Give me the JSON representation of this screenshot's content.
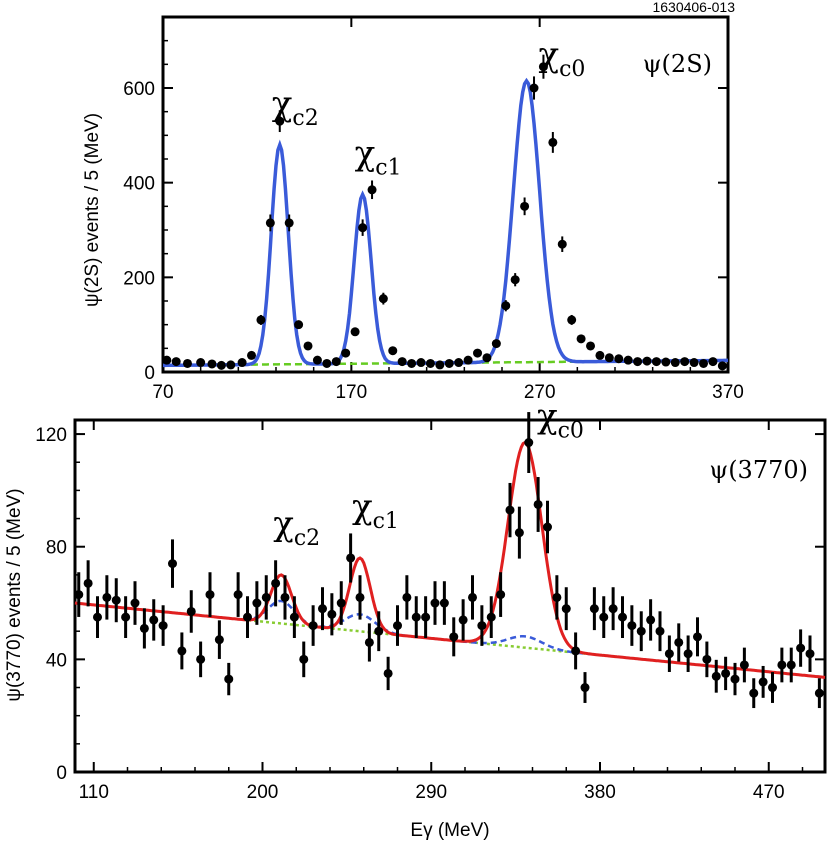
{
  "figure_id": "1630406-013",
  "colors": {
    "fit": "#3a5bd9",
    "background_top": "#66cc22",
    "fit_bottom": "#e02020",
    "signal_bottom": "#3a5bd9",
    "background_bottom": "#88cc33",
    "points": "#000000"
  },
  "chart_data": [
    {
      "type": "scatter",
      "panel": "top",
      "label": "ψ(2S)",
      "ylabel": "ψ(2S) events / 5 (MeV)",
      "xlabel": "",
      "xlim": [
        70,
        370
      ],
      "ylim": [
        0,
        750
      ],
      "x_ticks": [
        "70",
        "170",
        "270",
        "370"
      ],
      "y_ticks": [
        "0",
        "200",
        "400",
        "600"
      ],
      "x_tick_values": [
        70,
        170,
        270,
        370
      ],
      "y_tick_values": [
        0,
        200,
        400,
        600
      ],
      "peaks": [
        {
          "base": "χ",
          "sub": "c2",
          "energy": 132,
          "height": 480
        },
        {
          "base": "χ",
          "sub": "c1",
          "energy": 176,
          "height": 375
        },
        {
          "base": "χ",
          "sub": "c0",
          "energy": 263,
          "height": 615
        }
      ],
      "series": [
        {
          "name": "data",
          "x": [
            72,
            77,
            83,
            90,
            96,
            101,
            106,
            112,
            117,
            122,
            127,
            132,
            137,
            142,
            147,
            152,
            157,
            162,
            167,
            172,
            176,
            181,
            187,
            192,
            197,
            202,
            207,
            212,
            217,
            222,
            227,
            232,
            237,
            242,
            247,
            252,
            257,
            262,
            267,
            272,
            277,
            282,
            287,
            292,
            297,
            302,
            307,
            312,
            317,
            322,
            327,
            332,
            337,
            342,
            347,
            352,
            357,
            362,
            367
          ],
          "y": [
            25,
            22,
            18,
            20,
            17,
            14,
            15,
            20,
            35,
            110,
            315,
            530,
            315,
            100,
            55,
            25,
            18,
            22,
            40,
            85,
            305,
            385,
            155,
            45,
            22,
            18,
            20,
            18,
            15,
            18,
            20,
            25,
            40,
            30,
            60,
            140,
            195,
            350,
            600,
            645,
            485,
            270,
            110,
            70,
            55,
            35,
            30,
            28,
            25,
            22,
            23,
            22,
            21,
            20,
            22,
            20,
            18,
            22,
            13
          ]
        }
      ]
    },
    {
      "type": "scatter",
      "panel": "bottom",
      "label": "ψ(3770)",
      "ylabel": "ψ(3770) events / 5 (MeV)",
      "xlabel": "Eγ (MeV)",
      "xlim": [
        100,
        500
      ],
      "ylim": [
        0,
        125
      ],
      "x_ticks": [
        "110",
        "200",
        "290",
        "380",
        "470"
      ],
      "y_ticks": [
        "0",
        "40",
        "80",
        "120"
      ],
      "x_tick_values": [
        110,
        200,
        290,
        380,
        470
      ],
      "y_tick_values": [
        0,
        40,
        80,
        120
      ],
      "peaks": [
        {
          "base": "χ",
          "sub": "c2",
          "energy": 210,
          "height": 70
        },
        {
          "base": "χ",
          "sub": "c1",
          "energy": 252,
          "height": 76
        },
        {
          "base": "χ",
          "sub": "c0",
          "energy": 340,
          "height": 117
        }
      ],
      "series": [
        {
          "name": "data",
          "x": [
            102,
            107,
            112,
            117,
            122,
            127,
            132,
            137,
            142,
            147,
            152,
            157,
            162,
            167,
            172,
            177,
            182,
            187,
            192,
            197,
            202,
            207,
            212,
            217,
            222,
            227,
            232,
            237,
            242,
            247,
            252,
            257,
            262,
            267,
            272,
            277,
            282,
            287,
            292,
            297,
            302,
            307,
            312,
            317,
            322,
            327,
            332,
            337,
            342,
            347,
            352,
            357,
            362,
            367,
            372,
            377,
            382,
            387,
            392,
            397,
            402,
            407,
            412,
            417,
            422,
            427,
            432,
            437,
            442,
            447,
            452,
            457,
            462,
            467,
            472,
            477,
            482,
            487,
            492,
            497
          ],
          "y": [
            63,
            67,
            55,
            62,
            61,
            55,
            60,
            51,
            54,
            52,
            74,
            43,
            57,
            40,
            63,
            47,
            33,
            63,
            55,
            60,
            62,
            67,
            62,
            55,
            40,
            52,
            58,
            56,
            60,
            76,
            62,
            46,
            50,
            35,
            52,
            62,
            55,
            55,
            60,
            60,
            48,
            54,
            62,
            52,
            55,
            63,
            93,
            85,
            117,
            95,
            87,
            62,
            58,
            43,
            30,
            58,
            55,
            58,
            55,
            52,
            50,
            54,
            50,
            42,
            46,
            42,
            48,
            40,
            34,
            35,
            33,
            38,
            28,
            32,
            30,
            38,
            38,
            44,
            42,
            28
          ]
        }
      ]
    }
  ]
}
